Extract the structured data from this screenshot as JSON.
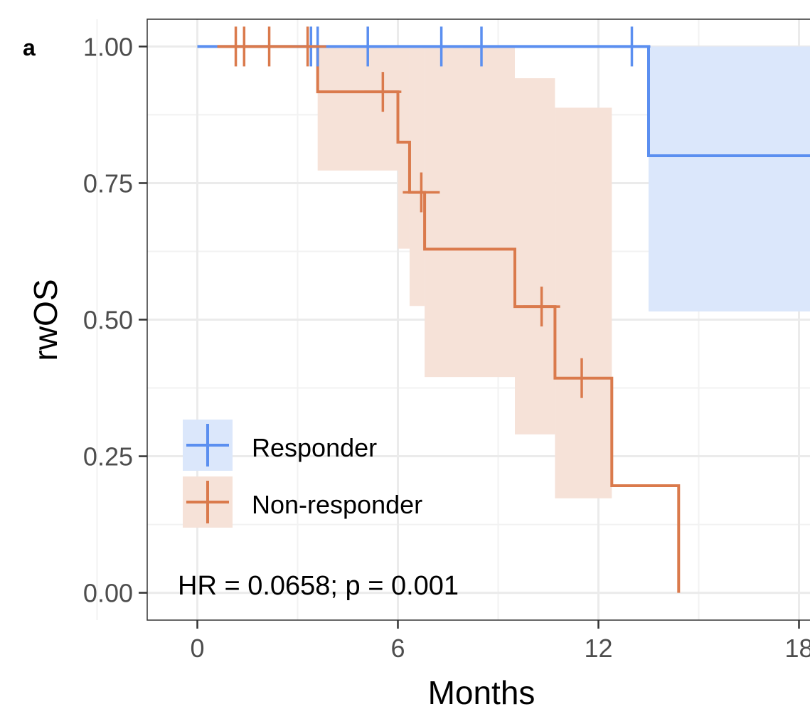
{
  "panel_label": "a",
  "chart_data": {
    "type": "line",
    "subtype": "kaplan-meier",
    "title": "",
    "xlabel": "Months",
    "ylabel": "rwOS",
    "xlim": [
      -1.5,
      18.5
    ],
    "ylim": [
      -0.05,
      1.05
    ],
    "x_ticks": [
      0,
      6,
      12,
      18
    ],
    "x_tick_labels": [
      "0",
      "6",
      "12",
      "18"
    ],
    "y_ticks": [
      0,
      0.25,
      0.5,
      0.75,
      1
    ],
    "y_tick_labels": [
      "0.00",
      "0.25",
      "0.50",
      "0.75",
      "1.00"
    ],
    "grid": true,
    "legend_position": "bottom-left",
    "annotation": "HR = 0.0658; p = 0.001",
    "series": [
      {
        "name": "Responder",
        "color": "#5b8ff0",
        "ci_color": "#dbe7fb",
        "steps": [
          [
            0,
            1.0
          ],
          [
            13.5,
            0.8
          ]
        ],
        "end_x": 18.5,
        "censor": [
          [
            3.4,
            1.0
          ],
          [
            3.6,
            1.0
          ],
          [
            5.1,
            1.0
          ],
          [
            7.3,
            1.0
          ],
          [
            8.5,
            1.0
          ],
          [
            13.0,
            1.0
          ]
        ],
        "ci": [
          [
            13.5,
            0.515,
            1.0
          ],
          [
            18.5,
            0.515,
            1.0
          ]
        ]
      },
      {
        "name": "Non-responder",
        "color": "#da7a4c",
        "ci_color": "#f6e2d8",
        "steps": [
          [
            0.6,
            1.0
          ],
          [
            3.6,
            0.917
          ],
          [
            6.0,
            0.825
          ],
          [
            6.35,
            0.733
          ],
          [
            6.8,
            0.629
          ],
          [
            9.5,
            0.524
          ],
          [
            10.7,
            0.393
          ],
          [
            12.4,
            0.196
          ],
          [
            14.4,
            0.0
          ]
        ],
        "end_x": 14.4,
        "censor": [
          [
            1.15,
            1.0
          ],
          [
            1.4,
            1.0
          ],
          [
            2.15,
            1.0
          ],
          [
            3.3,
            1.0
          ],
          [
            5.55,
            0.917
          ],
          [
            6.7,
            0.733
          ],
          [
            10.3,
            0.524
          ],
          [
            11.5,
            0.393
          ]
        ],
        "ci": [
          [
            3.6,
            0.773,
            1.0
          ],
          [
            6.0,
            0.63,
            1.0
          ],
          [
            6.35,
            0.525,
            1.0
          ],
          [
            6.8,
            0.395,
            1.0
          ],
          [
            9.5,
            0.29,
            0.942
          ],
          [
            10.7,
            0.173,
            0.888
          ],
          [
            12.4,
            0.173,
            0.888
          ]
        ]
      }
    ]
  }
}
